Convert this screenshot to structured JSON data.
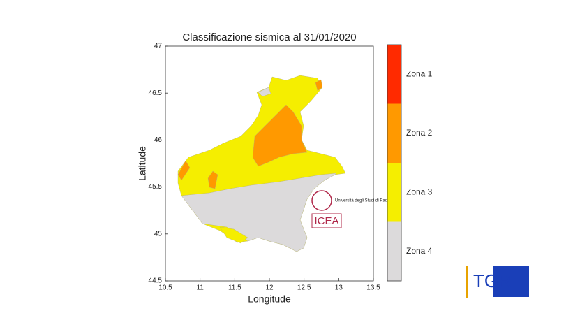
{
  "chart_data": {
    "type": "map",
    "title": "Classificazione sismica al 31/01/2020",
    "xlabel": "Longitude",
    "ylabel": "Latitude",
    "xlim": [
      10.5,
      13.5
    ],
    "ylim": [
      44.5,
      47
    ],
    "xticks": [
      10.5,
      11,
      11.5,
      12,
      12.5,
      13,
      13.5
    ],
    "yticks": [
      44.5,
      45,
      45.5,
      46,
      46.5,
      47
    ],
    "legend": [
      {
        "name": "Zona 1",
        "color": "#ff2a00"
      },
      {
        "name": "Zona 2",
        "color": "#ff9900"
      },
      {
        "name": "Zona 3",
        "color": "#f5ee00"
      },
      {
        "name": "Zona 4",
        "color": "#dcdadb"
      }
    ]
  },
  "logos": {
    "university": "Università degli Studi di Padova",
    "institute": "ICEA",
    "broadcaster": "TGR"
  }
}
